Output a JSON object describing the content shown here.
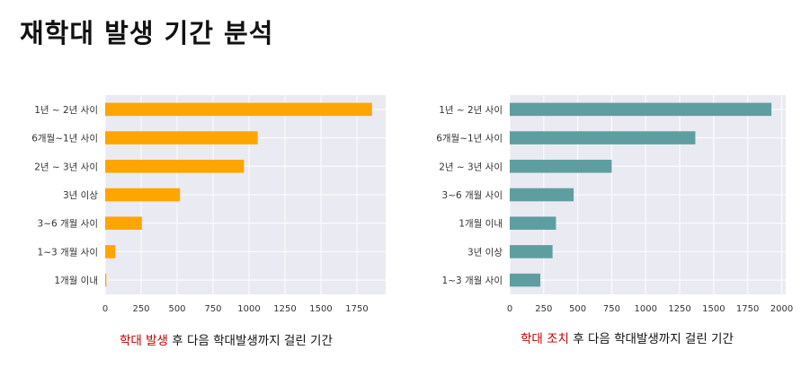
{
  "page": {
    "title": "재학대 발생 기간 분석"
  },
  "chart_data": [
    {
      "type": "bar",
      "orientation": "horizontal",
      "categories": [
        "1년 ~ 2년 사이",
        "6개월~1년 사이",
        "2년 ~ 3년 사이",
        "3년 이상",
        "3~6 개월 사이",
        "1~3 개월 사이",
        "1개월 이내"
      ],
      "values": [
        1855,
        1060,
        965,
        520,
        255,
        70,
        8
      ],
      "xlim": [
        0,
        1950
      ],
      "xticks": [
        0,
        250,
        500,
        750,
        1000,
        1250,
        1500,
        1750
      ],
      "grid": true,
      "color": "#FFA500",
      "caption_highlight": "학대 발생",
      "caption_rest": " 후 다음 학대발생까지 걸린 기간"
    },
    {
      "type": "bar",
      "orientation": "horizontal",
      "categories": [
        "1년 ~ 2년 사이",
        "6개월~1년 사이",
        "2년 ~ 3년 사이",
        "3~6 개월 사이",
        "1개월 이내",
        "3년 이상",
        "1~3 개월 사이"
      ],
      "values": [
        1925,
        1365,
        750,
        470,
        340,
        315,
        225
      ],
      "xlim": [
        0,
        2030
      ],
      "xticks": [
        0,
        250,
        500,
        750,
        1000,
        1250,
        1500,
        1750,
        2000
      ],
      "grid": true,
      "color": "#5F9EA0",
      "caption_highlight": "학대 조치",
      "caption_rest": " 후 다음 학대발생까지 걸린 기간"
    }
  ]
}
